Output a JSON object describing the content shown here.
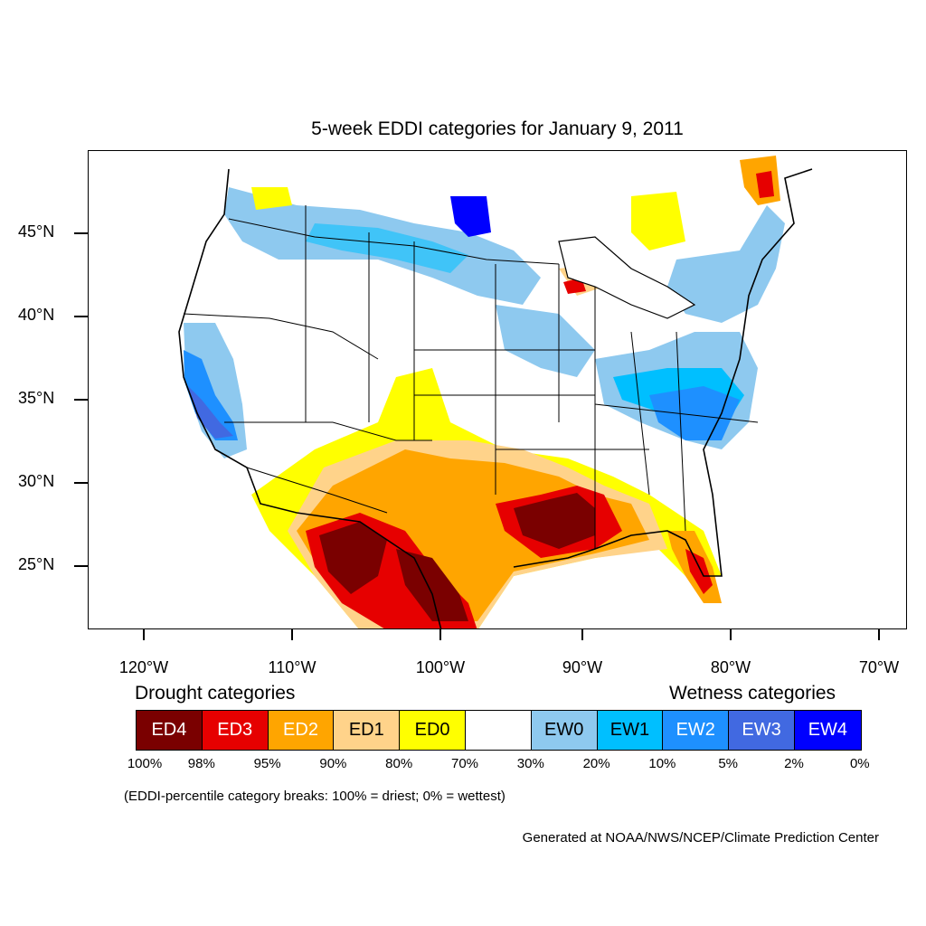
{
  "title": "5-week EDDI categories for January 9, 2011",
  "map": {
    "lat_labels": [
      "45°N",
      "40°N",
      "35°N",
      "30°N",
      "25°N"
    ],
    "lon_labels": [
      "120°W",
      "110°W",
      "100°W",
      "90°W",
      "80°W",
      "70°W"
    ]
  },
  "legend": {
    "drought_heading": "Drought categories",
    "wetness_heading": "Wetness categories",
    "categories": [
      {
        "label": "ED4",
        "color": "#7a0000",
        "text_color": "#ffffff"
      },
      {
        "label": "ED3",
        "color": "#e60000",
        "text_color": "#ffffff"
      },
      {
        "label": "ED2",
        "color": "#ffa500",
        "text_color": "#ffffff"
      },
      {
        "label": "ED1",
        "color": "#ffd38a",
        "text_color": "#000000"
      },
      {
        "label": "ED0",
        "color": "#ffff00",
        "text_color": "#000000"
      },
      {
        "label": "",
        "color": "#ffffff",
        "text_color": "#000000"
      },
      {
        "label": "EW0",
        "color": "#8ec9ef",
        "text_color": "#000000"
      },
      {
        "label": "EW1",
        "color": "#00bfff",
        "text_color": "#000000"
      },
      {
        "label": "EW2",
        "color": "#1e90ff",
        "text_color": "#ffffff"
      },
      {
        "label": "EW3",
        "color": "#4169e1",
        "text_color": "#ffffff"
      },
      {
        "label": "EW4",
        "color": "#0000ff",
        "text_color": "#ffffff"
      }
    ],
    "breaks": [
      "100%",
      "98%",
      "95%",
      "90%",
      "80%",
      "70%",
      "30%",
      "20%",
      "10%",
      "5%",
      "2%",
      "0%"
    ]
  },
  "note": "(EDDI-percentile category breaks: 100% = driest; 0% = wettest)",
  "credit": "Generated at NOAA/NWS/NCEP/Climate Prediction Center"
}
